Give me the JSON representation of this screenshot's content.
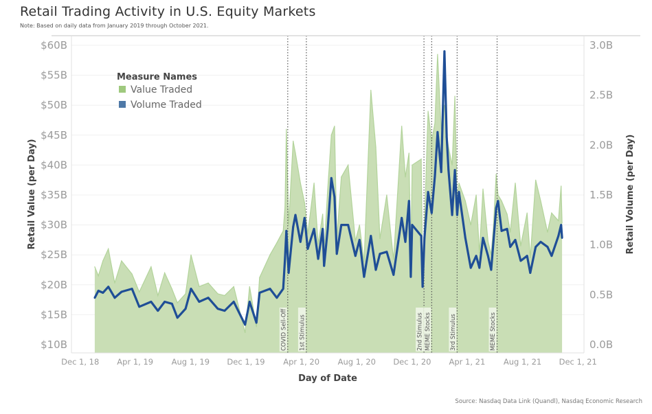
{
  "title": "Retail Trading Activity in U.S. Equity Markets",
  "note": "Note: Based on daily data from January 2019 through October 2021.",
  "source": "Source: Nasdaq Data Link (Quandl), Nasdaq Economic Research",
  "chart_data": {
    "type": "area+line (dual axis)",
    "xlabel": "Day of Date",
    "ylabel_left": "Retail Value (per Day)",
    "ylabel_right": "Retail Volume (per Day)",
    "x_ticks": [
      "Dec 1, 18",
      "Apr 1, 19",
      "Aug 1, 19",
      "Dec 1, 19",
      "Apr 1, 20",
      "Aug 1, 20",
      "Dec 1, 20",
      "Apr 1, 21",
      "Aug 1, 21",
      "Dec 1, 21"
    ],
    "x_tick_dates": [
      "2018-12-01",
      "2019-04-01",
      "2019-08-01",
      "2019-12-01",
      "2020-04-01",
      "2020-08-01",
      "2020-12-01",
      "2021-04-01",
      "2021-08-01",
      "2021-12-01"
    ],
    "y_left_ticks": [
      "$10B",
      "$15B",
      "$20B",
      "$25B",
      "$30B",
      "$35B",
      "$40B",
      "$45B",
      "$50B",
      "$55B",
      "$60B"
    ],
    "y_left_tick_values": [
      10,
      15,
      20,
      25,
      30,
      35,
      40,
      45,
      50,
      55,
      60
    ],
    "y_left_range": [
      10,
      60
    ],
    "y_right_ticks": [
      "0.0B",
      "0.5B",
      "1.0B",
      "1.5B",
      "2.0B",
      "2.5B",
      "3.0B"
    ],
    "y_right_tick_values": [
      0,
      0.5,
      1,
      1.5,
      2,
      2.5,
      3
    ],
    "y_right_range": [
      0,
      3
    ],
    "grid": "horizontal",
    "legend": {
      "title": "Measure Names",
      "placement": "top-left",
      "items": [
        {
          "label": "Value Traded",
          "color": "#9fc97e"
        },
        {
          "label": "Volume Traded",
          "color": "#4e79a7"
        }
      ]
    },
    "colors": {
      "value_fill": "#c9deb5",
      "value_line": "#b2d39a",
      "volume_line": "#1f4e96",
      "event_line": "#555555"
    },
    "events": [
      {
        "label": "COVID Sell-Off",
        "date": "2020-03-02"
      },
      {
        "label": "1st Stimulus",
        "date": "2020-04-12"
      },
      {
        "label": "2nd Stimulus",
        "date": "2020-12-27"
      },
      {
        "label": "MEME Stocks",
        "date": "2021-01-13"
      },
      {
        "label": "3rd Stimulus",
        "date": "2021-03-10"
      },
      {
        "label": "MEME Stocks",
        "date": "2021-06-06"
      }
    ],
    "series": [
      {
        "name": "Value Traded",
        "axis": "left",
        "unit": "$B",
        "points": [
          [
            "2019-01-02",
            23
          ],
          [
            "2019-01-10",
            21.5
          ],
          [
            "2019-01-20",
            24
          ],
          [
            "2019-02-01",
            26
          ],
          [
            "2019-02-15",
            20.3
          ],
          [
            "2019-03-02",
            24
          ],
          [
            "2019-03-25",
            21.8
          ],
          [
            "2019-04-10",
            18.8
          ],
          [
            "2019-05-06",
            23
          ],
          [
            "2019-05-21",
            18.2
          ],
          [
            "2019-06-05",
            22
          ],
          [
            "2019-06-21",
            19.3
          ],
          [
            "2019-07-03",
            17
          ],
          [
            "2019-07-21",
            18.5
          ],
          [
            "2019-08-02",
            25
          ],
          [
            "2019-08-20",
            19.7
          ],
          [
            "2019-09-09",
            20.3
          ],
          [
            "2019-09-30",
            18.5
          ],
          [
            "2019-10-15",
            18.2
          ],
          [
            "2019-11-04",
            19.7
          ],
          [
            "2019-11-29",
            12
          ],
          [
            "2019-12-09",
            19.7
          ],
          [
            "2019-12-24",
            13
          ],
          [
            "2019-12-31",
            21.2
          ],
          [
            "2020-01-23",
            25
          ],
          [
            "2020-02-07",
            27
          ],
          [
            "2020-02-21",
            29
          ],
          [
            "2020-02-25",
            33
          ],
          [
            "2020-02-28",
            46
          ],
          [
            "2020-03-04",
            30
          ],
          [
            "2020-03-14",
            44
          ],
          [
            "2020-03-19",
            42
          ],
          [
            "2020-03-30",
            37
          ],
          [
            "2020-04-08",
            33.7
          ],
          [
            "2020-04-15",
            28.5
          ],
          [
            "2020-04-29",
            37
          ],
          [
            "2020-05-08",
            26.8
          ],
          [
            "2020-05-18",
            31.8
          ],
          [
            "2020-05-21",
            25.7
          ],
          [
            "2020-05-29",
            36
          ],
          [
            "2020-06-06",
            45
          ],
          [
            "2020-06-13",
            46.5
          ],
          [
            "2020-06-18",
            27.7
          ],
          [
            "2020-06-28",
            38
          ],
          [
            "2020-07-13",
            40
          ],
          [
            "2020-07-29",
            27.3
          ],
          [
            "2020-08-07",
            30
          ],
          [
            "2020-08-17",
            23.8
          ],
          [
            "2020-09-01",
            52.5
          ],
          [
            "2020-09-12",
            43
          ],
          [
            "2020-09-21",
            27.7
          ],
          [
            "2020-10-06",
            35
          ],
          [
            "2020-10-21",
            24.2
          ],
          [
            "2020-11-08",
            46.5
          ],
          [
            "2020-11-16",
            38
          ],
          [
            "2020-11-24",
            42
          ],
          [
            "2020-11-28",
            23.8
          ],
          [
            "2020-12-01",
            40
          ],
          [
            "2020-12-21",
            41
          ],
          [
            "2020-12-24",
            22.2
          ],
          [
            "2020-12-28",
            30.3
          ],
          [
            "2021-01-05",
            49
          ],
          [
            "2021-01-13",
            44
          ],
          [
            "2021-01-20",
            47
          ],
          [
            "2021-01-26",
            58.5
          ],
          [
            "2021-02-03",
            46
          ],
          [
            "2021-02-10",
            50
          ],
          [
            "2021-02-15",
            45
          ],
          [
            "2021-02-19",
            43
          ],
          [
            "2021-02-27",
            40
          ],
          [
            "2021-03-05",
            51.5
          ],
          [
            "2021-03-10",
            34.2
          ],
          [
            "2021-03-14",
            37
          ],
          [
            "2021-03-28",
            34
          ],
          [
            "2021-04-09",
            30
          ],
          [
            "2021-04-21",
            35
          ],
          [
            "2021-04-28",
            25.3
          ],
          [
            "2021-05-06",
            36
          ],
          [
            "2021-05-17",
            27.3
          ],
          [
            "2021-05-24",
            25
          ],
          [
            "2021-05-29",
            29.7
          ],
          [
            "2021-06-04",
            38.5
          ],
          [
            "2021-06-08",
            35
          ],
          [
            "2021-06-16",
            34
          ],
          [
            "2021-06-28",
            31.8
          ],
          [
            "2021-07-05",
            28.8
          ],
          [
            "2021-07-16",
            37
          ],
          [
            "2021-07-28",
            26.5
          ],
          [
            "2021-08-11",
            32
          ],
          [
            "2021-08-18",
            24.5
          ],
          [
            "2021-08-30",
            37.5
          ],
          [
            "2021-09-10",
            34
          ],
          [
            "2021-09-25",
            28.8
          ],
          [
            "2021-10-04",
            32
          ],
          [
            "2021-10-19",
            30.7
          ],
          [
            "2021-10-25",
            36.5
          ],
          [
            "2021-10-27",
            30.3
          ]
        ]
      },
      {
        "name": "Volume Traded",
        "axis": "right",
        "unit": "B shares",
        "points": [
          [
            "2019-01-02",
            0.47
          ],
          [
            "2019-01-10",
            0.54
          ],
          [
            "2019-01-20",
            0.52
          ],
          [
            "2019-02-01",
            0.58
          ],
          [
            "2019-02-15",
            0.47
          ],
          [
            "2019-03-02",
            0.53
          ],
          [
            "2019-03-25",
            0.56
          ],
          [
            "2019-04-10",
            0.38
          ],
          [
            "2019-05-06",
            0.43
          ],
          [
            "2019-05-21",
            0.34
          ],
          [
            "2019-06-05",
            0.43
          ],
          [
            "2019-06-21",
            0.41
          ],
          [
            "2019-07-03",
            0.27
          ],
          [
            "2019-07-21",
            0.36
          ],
          [
            "2019-08-02",
            0.56
          ],
          [
            "2019-08-20",
            0.43
          ],
          [
            "2019-09-09",
            0.47
          ],
          [
            "2019-09-30",
            0.36
          ],
          [
            "2019-10-15",
            0.34
          ],
          [
            "2019-11-04",
            0.43
          ],
          [
            "2019-11-29",
            0.2
          ],
          [
            "2019-12-09",
            0.43
          ],
          [
            "2019-12-24",
            0.22
          ],
          [
            "2019-12-31",
            0.52
          ],
          [
            "2020-01-23",
            0.56
          ],
          [
            "2020-02-07",
            0.47
          ],
          [
            "2020-02-21",
            0.56
          ],
          [
            "2020-02-25",
            0.86
          ],
          [
            "2020-02-28",
            1.14
          ],
          [
            "2020-03-04",
            0.72
          ],
          [
            "2020-03-14",
            1.18
          ],
          [
            "2020-03-19",
            1.3
          ],
          [
            "2020-03-30",
            1.03
          ],
          [
            "2020-04-08",
            1.27
          ],
          [
            "2020-04-15",
            0.96
          ],
          [
            "2020-04-29",
            1.16
          ],
          [
            "2020-05-08",
            0.86
          ],
          [
            "2020-05-18",
            1.16
          ],
          [
            "2020-05-21",
            0.79
          ],
          [
            "2020-05-29",
            1.16
          ],
          [
            "2020-06-06",
            1.67
          ],
          [
            "2020-06-13",
            1.48
          ],
          [
            "2020-06-18",
            0.91
          ],
          [
            "2020-06-28",
            1.2
          ],
          [
            "2020-07-13",
            1.2
          ],
          [
            "2020-07-29",
            0.89
          ],
          [
            "2020-08-07",
            1.05
          ],
          [
            "2020-08-17",
            0.68
          ],
          [
            "2020-09-01",
            1.09
          ],
          [
            "2020-09-12",
            0.75
          ],
          [
            "2020-09-21",
            0.91
          ],
          [
            "2020-10-06",
            0.93
          ],
          [
            "2020-10-21",
            0.7
          ],
          [
            "2020-11-08",
            1.27
          ],
          [
            "2020-11-16",
            1.03
          ],
          [
            "2020-11-24",
            1.44
          ],
          [
            "2020-11-28",
            0.68
          ],
          [
            "2020-12-01",
            1.2
          ],
          [
            "2020-12-21",
            1.09
          ],
          [
            "2020-12-24",
            0.58
          ],
          [
            "2020-12-28",
            1.07
          ],
          [
            "2021-01-05",
            1.53
          ],
          [
            "2021-01-13",
            1.32
          ],
          [
            "2021-01-20",
            1.69
          ],
          [
            "2021-01-26",
            2.13
          ],
          [
            "2021-02-03",
            1.73
          ],
          [
            "2021-02-10",
            2.94
          ],
          [
            "2021-02-15",
            2.08
          ],
          [
            "2021-02-19",
            1.75
          ],
          [
            "2021-02-27",
            1.3
          ],
          [
            "2021-03-05",
            1.75
          ],
          [
            "2021-03-10",
            1.3
          ],
          [
            "2021-03-14",
            1.53
          ],
          [
            "2021-03-28",
            1.07
          ],
          [
            "2021-04-09",
            0.77
          ],
          [
            "2021-04-21",
            0.89
          ],
          [
            "2021-04-28",
            0.77
          ],
          [
            "2021-05-06",
            1.07
          ],
          [
            "2021-05-17",
            0.89
          ],
          [
            "2021-05-24",
            0.75
          ],
          [
            "2021-05-29",
            1.03
          ],
          [
            "2021-06-04",
            1.37
          ],
          [
            "2021-06-08",
            1.44
          ],
          [
            "2021-06-16",
            1.14
          ],
          [
            "2021-06-28",
            1.16
          ],
          [
            "2021-07-05",
            0.98
          ],
          [
            "2021-07-16",
            1.05
          ],
          [
            "2021-07-28",
            0.84
          ],
          [
            "2021-08-11",
            0.89
          ],
          [
            "2021-08-18",
            0.72
          ],
          [
            "2021-08-30",
            0.98
          ],
          [
            "2021-09-10",
            1.03
          ],
          [
            "2021-09-25",
            0.98
          ],
          [
            "2021-10-04",
            0.89
          ],
          [
            "2021-10-19",
            1.09
          ],
          [
            "2021-10-25",
            1.2
          ],
          [
            "2021-10-27",
            1.07
          ]
        ]
      }
    ]
  }
}
